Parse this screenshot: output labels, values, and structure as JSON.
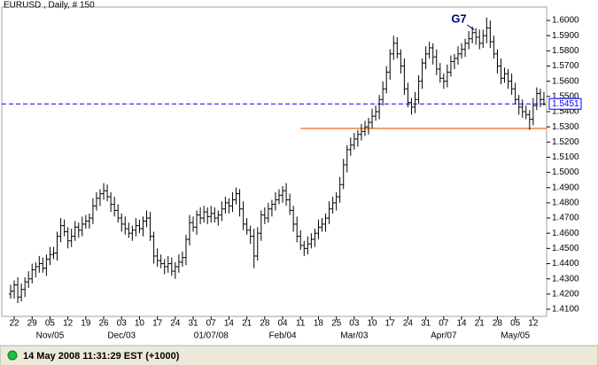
{
  "chart_data": {
    "type": "ohlc",
    "title": "EURUSD , Daily, # 150",
    "bar_color": "#000000",
    "ylim": [
      1.4053,
      1.6088
    ],
    "yticks": [
      {
        "value": 1.41,
        "label": "1.4100"
      },
      {
        "value": 1.42,
        "label": "1.4200"
      },
      {
        "value": 1.43,
        "label": "1.4300"
      },
      {
        "value": 1.44,
        "label": "1.4400"
      },
      {
        "value": 1.45,
        "label": "1.4500"
      },
      {
        "value": 1.46,
        "label": "1.4600"
      },
      {
        "value": 1.47,
        "label": "1.4700"
      },
      {
        "value": 1.48,
        "label": "1.4800"
      },
      {
        "value": 1.49,
        "label": "1.4900"
      },
      {
        "value": 1.5,
        "label": "1.5000"
      },
      {
        "value": 1.51,
        "label": "1.5100"
      },
      {
        "value": 1.52,
        "label": "1.5200"
      },
      {
        "value": 1.53,
        "label": "1.5300"
      },
      {
        "value": 1.54,
        "label": "1.5400"
      },
      {
        "value": 1.55,
        "label": "1.5500"
      },
      {
        "value": 1.56,
        "label": "1.5600"
      },
      {
        "value": 1.57,
        "label": "1.5700"
      },
      {
        "value": 1.58,
        "label": "1.5800"
      },
      {
        "value": 1.59,
        "label": "1.5900"
      },
      {
        "value": 1.6,
        "label": "1.6000"
      }
    ],
    "categories": [
      null,
      "22",
      null,
      null,
      null,
      null,
      "29",
      null,
      null,
      null,
      null,
      "05",
      null,
      null,
      null,
      null,
      "12",
      null,
      null,
      null,
      null,
      "19",
      null,
      null,
      null,
      null,
      "26",
      null,
      null,
      null,
      null,
      "03",
      null,
      null,
      null,
      null,
      "10",
      null,
      null,
      null,
      null,
      "17",
      null,
      null,
      null,
      null,
      "24",
      null,
      null,
      null,
      null,
      "31",
      null,
      null,
      null,
      null,
      "07",
      null,
      null,
      null,
      null,
      "14",
      null,
      null,
      null,
      null,
      "21",
      null,
      null,
      null,
      null,
      "28",
      null,
      null,
      null,
      null,
      "04",
      null,
      null,
      null,
      null,
      "11",
      null,
      null,
      null,
      null,
      "18",
      null,
      null,
      null,
      null,
      "25",
      null,
      null,
      null,
      null,
      "03",
      null,
      null,
      null,
      null,
      "10",
      null,
      null,
      null,
      null,
      "17",
      null,
      null,
      null,
      null,
      "24",
      null,
      null,
      null,
      null,
      "31",
      null,
      null,
      null,
      null,
      "07",
      null,
      null,
      null,
      null,
      "14",
      null,
      null,
      null,
      null,
      "21",
      null,
      null,
      null,
      null,
      "28",
      null,
      null,
      null,
      null,
      "05",
      null,
      null,
      null,
      null,
      "12",
      null,
      null,
      null
    ],
    "months": [
      {
        "label": "Nov/05",
        "index": 11
      },
      {
        "label": "Dec/03",
        "index": 31
      },
      {
        "label": "01/07/08",
        "index": 56
      },
      {
        "label": "Feb/04",
        "index": 76
      },
      {
        "label": "Mar/03",
        "index": 96
      },
      {
        "label": "Apr/07",
        "index": 121
      },
      {
        "label": "May/05",
        "index": 141
      }
    ],
    "ohlc": [
      [
        1.42,
        1.426,
        1.417,
        1.422
      ],
      [
        1.422,
        1.429,
        1.417,
        1.426
      ],
      [
        1.426,
        1.431,
        1.414,
        1.418
      ],
      [
        1.418,
        1.427,
        1.415,
        1.423
      ],
      [
        1.423,
        1.431,
        1.418,
        1.428
      ],
      [
        1.428,
        1.435,
        1.424,
        1.43
      ],
      [
        1.43,
        1.44,
        1.427,
        1.436
      ],
      [
        1.436,
        1.441,
        1.431,
        1.438
      ],
      [
        1.438,
        1.445,
        1.434,
        1.44
      ],
      [
        1.44,
        1.444,
        1.434,
        1.437
      ],
      [
        1.437,
        1.446,
        1.432,
        1.443
      ],
      [
        1.443,
        1.451,
        1.439,
        1.446
      ],
      [
        1.446,
        1.451,
        1.443,
        1.447
      ],
      [
        1.447,
        1.461,
        1.442,
        1.458
      ],
      [
        1.458,
        1.47,
        1.454,
        1.465
      ],
      [
        1.465,
        1.469,
        1.458,
        1.461
      ],
      [
        1.461,
        1.464,
        1.45,
        1.455
      ],
      [
        1.455,
        1.463,
        1.451,
        1.458
      ],
      [
        1.458,
        1.468,
        1.455,
        1.464
      ],
      [
        1.464,
        1.467,
        1.457,
        1.462
      ],
      [
        1.462,
        1.471,
        1.458,
        1.466
      ],
      [
        1.466,
        1.472,
        1.463,
        1.468
      ],
      [
        1.468,
        1.473,
        1.463,
        1.47
      ],
      [
        1.47,
        1.483,
        1.466,
        1.478
      ],
      [
        1.478,
        1.487,
        1.475,
        1.483
      ],
      [
        1.483,
        1.489,
        1.478,
        1.486
      ],
      [
        1.486,
        1.493,
        1.482,
        1.488
      ],
      [
        1.488,
        1.492,
        1.481,
        1.484
      ],
      [
        1.484,
        1.487,
        1.474,
        1.479
      ],
      [
        1.479,
        1.484,
        1.471,
        1.475
      ],
      [
        1.475,
        1.479,
        1.467,
        1.47
      ],
      [
        1.47,
        1.473,
        1.461,
        1.466
      ],
      [
        1.466,
        1.471,
        1.459,
        1.463
      ],
      [
        1.463,
        1.467,
        1.457,
        1.46
      ],
      [
        1.46,
        1.465,
        1.455,
        1.462
      ],
      [
        1.462,
        1.47,
        1.458,
        1.465
      ],
      [
        1.465,
        1.469,
        1.46,
        1.463
      ],
      [
        1.463,
        1.471,
        1.458,
        1.468
      ],
      [
        1.468,
        1.475,
        1.464,
        1.47
      ],
      [
        1.47,
        1.474,
        1.455,
        1.458
      ],
      [
        1.458,
        1.461,
        1.44,
        1.445
      ],
      [
        1.445,
        1.45,
        1.438,
        1.442
      ],
      [
        1.442,
        1.446,
        1.437,
        1.44
      ],
      [
        1.44,
        1.443,
        1.433,
        1.438
      ],
      [
        1.438,
        1.445,
        1.434,
        1.44
      ],
      [
        1.44,
        1.444,
        1.432,
        1.435
      ],
      [
        1.435,
        1.441,
        1.43,
        1.438
      ],
      [
        1.438,
        1.446,
        1.434,
        1.441
      ],
      [
        1.441,
        1.448,
        1.438,
        1.444
      ],
      [
        1.444,
        1.459,
        1.439,
        1.456
      ],
      [
        1.456,
        1.472,
        1.452,
        1.467
      ],
      [
        1.467,
        1.471,
        1.461,
        1.464
      ],
      [
        1.464,
        1.475,
        1.459,
        1.472
      ],
      [
        1.472,
        1.477,
        1.466,
        1.47
      ],
      [
        1.47,
        1.478,
        1.467,
        1.474
      ],
      [
        1.474,
        1.477,
        1.466,
        1.471
      ],
      [
        1.471,
        1.478,
        1.467,
        1.473
      ],
      [
        1.473,
        1.477,
        1.467,
        1.47
      ],
      [
        1.47,
        1.475,
        1.465,
        1.472
      ],
      [
        1.472,
        1.481,
        1.468,
        1.476
      ],
      [
        1.476,
        1.484,
        1.473,
        1.48
      ],
      [
        1.48,
        1.483,
        1.473,
        1.478
      ],
      [
        1.478,
        1.487,
        1.474,
        1.482
      ],
      [
        1.482,
        1.49,
        1.479,
        1.486
      ],
      [
        1.486,
        1.489,
        1.471,
        1.476
      ],
      [
        1.476,
        1.481,
        1.462,
        1.466
      ],
      [
        1.466,
        1.47,
        1.459,
        1.462
      ],
      [
        1.462,
        1.465,
        1.453,
        1.458
      ],
      [
        1.458,
        1.463,
        1.437,
        1.445
      ],
      [
        1.445,
        1.464,
        1.442,
        1.46
      ],
      [
        1.46,
        1.475,
        1.455,
        1.472
      ],
      [
        1.472,
        1.477,
        1.466,
        1.47
      ],
      [
        1.47,
        1.48,
        1.467,
        1.476
      ],
      [
        1.476,
        1.482,
        1.471,
        1.479
      ],
      [
        1.479,
        1.487,
        1.475,
        1.482
      ],
      [
        1.482,
        1.489,
        1.479,
        1.485
      ],
      [
        1.485,
        1.491,
        1.48,
        1.488
      ],
      [
        1.488,
        1.493,
        1.478,
        1.482
      ],
      [
        1.482,
        1.486,
        1.472,
        1.475
      ],
      [
        1.475,
        1.478,
        1.461,
        1.466
      ],
      [
        1.466,
        1.471,
        1.454,
        1.458
      ],
      [
        1.458,
        1.462,
        1.449,
        1.452
      ],
      [
        1.452,
        1.455,
        1.445,
        1.45
      ],
      [
        1.45,
        1.458,
        1.446,
        1.453
      ],
      [
        1.453,
        1.46,
        1.45,
        1.456
      ],
      [
        1.456,
        1.463,
        1.451,
        1.46
      ],
      [
        1.46,
        1.469,
        1.456,
        1.464
      ],
      [
        1.464,
        1.47,
        1.461,
        1.466
      ],
      [
        1.466,
        1.473,
        1.461,
        1.47
      ],
      [
        1.47,
        1.481,
        1.466,
        1.476
      ],
      [
        1.476,
        1.484,
        1.473,
        1.48
      ],
      [
        1.48,
        1.487,
        1.475,
        1.484
      ],
      [
        1.484,
        1.497,
        1.48,
        1.492
      ],
      [
        1.492,
        1.509,
        1.489,
        1.505
      ],
      [
        1.505,
        1.518,
        1.5,
        1.515
      ],
      [
        1.515,
        1.523,
        1.511,
        1.518
      ],
      [
        1.518,
        1.526,
        1.515,
        1.522
      ],
      [
        1.522,
        1.528,
        1.517,
        1.525
      ],
      [
        1.525,
        1.532,
        1.521,
        1.527
      ],
      [
        1.527,
        1.534,
        1.524,
        1.53
      ],
      [
        1.53,
        1.536,
        1.525,
        1.533
      ],
      [
        1.533,
        1.542,
        1.529,
        1.537
      ],
      [
        1.537,
        1.544,
        1.534,
        1.54
      ],
      [
        1.54,
        1.551,
        1.535,
        1.548
      ],
      [
        1.548,
        1.56,
        1.544,
        1.555
      ],
      [
        1.555,
        1.57,
        1.552,
        1.566
      ],
      [
        1.566,
        1.581,
        1.561,
        1.578
      ],
      [
        1.578,
        1.59,
        1.574,
        1.585
      ],
      [
        1.585,
        1.589,
        1.575,
        1.578
      ],
      [
        1.578,
        1.581,
        1.565,
        1.57
      ],
      [
        1.57,
        1.575,
        1.551,
        1.555
      ],
      [
        1.555,
        1.559,
        1.543,
        1.546
      ],
      [
        1.546,
        1.549,
        1.538,
        1.543
      ],
      [
        1.543,
        1.553,
        1.539,
        1.548
      ],
      [
        1.548,
        1.564,
        1.545,
        1.56
      ],
      [
        1.56,
        1.575,
        1.555,
        1.572
      ],
      [
        1.572,
        1.583,
        1.568,
        1.578
      ],
      [
        1.578,
        1.586,
        1.575,
        1.582
      ],
      [
        1.582,
        1.585,
        1.571,
        1.576
      ],
      [
        1.576,
        1.581,
        1.564,
        1.568
      ],
      [
        1.568,
        1.572,
        1.559,
        1.562
      ],
      [
        1.562,
        1.565,
        1.555,
        1.56
      ],
      [
        1.56,
        1.571,
        1.556,
        1.566
      ],
      [
        1.566,
        1.577,
        1.563,
        1.573
      ],
      [
        1.573,
        1.578,
        1.568,
        1.575
      ],
      [
        1.575,
        1.583,
        1.571,
        1.578
      ],
      [
        1.578,
        1.585,
        1.575,
        1.581
      ],
      [
        1.581,
        1.588,
        1.576,
        1.585
      ],
      [
        1.585,
        1.593,
        1.581,
        1.588
      ],
      [
        1.588,
        1.596,
        1.585,
        1.592
      ],
      [
        1.592,
        1.595,
        1.584,
        1.589
      ],
      [
        1.589,
        1.594,
        1.581,
        1.585
      ],
      [
        1.585,
        1.594,
        1.582,
        1.59
      ],
      [
        1.59,
        1.602,
        1.585,
        1.595
      ],
      [
        1.595,
        1.6,
        1.582,
        1.586
      ],
      [
        1.586,
        1.59,
        1.575,
        1.578
      ],
      [
        1.578,
        1.581,
        1.565,
        1.57
      ],
      [
        1.57,
        1.575,
        1.558,
        1.562
      ],
      [
        1.562,
        1.569,
        1.559,
        1.565
      ],
      [
        1.565,
        1.568,
        1.555,
        1.56
      ],
      [
        1.56,
        1.565,
        1.551,
        1.555
      ],
      [
        1.555,
        1.559,
        1.545,
        1.548
      ],
      [
        1.548,
        1.551,
        1.538,
        1.543
      ],
      [
        1.543,
        1.548,
        1.536,
        1.54
      ],
      [
        1.54,
        1.544,
        1.535,
        1.538
      ],
      [
        1.538,
        1.541,
        1.528,
        1.535
      ],
      [
        1.535,
        1.549,
        1.531,
        1.544
      ],
      [
        1.544,
        1.556,
        1.541,
        1.552
      ],
      [
        1.552,
        1.555,
        1.543,
        1.548
      ],
      [
        1.548,
        1.553,
        1.544,
        1.545
      ]
    ],
    "current_price": {
      "value": 1.5451,
      "color": "#0000ff"
    },
    "support_line": {
      "value": 1.529,
      "from_index": 81,
      "color": "#f08040"
    },
    "annotation": {
      "text": "G7",
      "index": 133,
      "color": "#000080"
    },
    "status_text": "14 May 2008 11:31:29  EST (+1000)"
  }
}
